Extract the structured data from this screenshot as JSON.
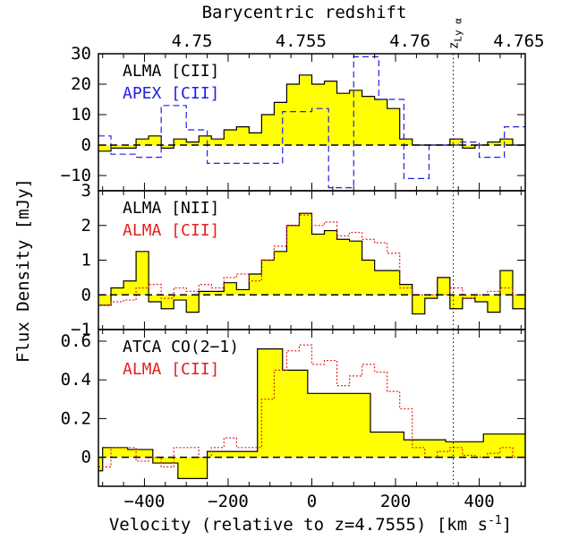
{
  "colors": {
    "fill": "#ffff00",
    "outline": "#000000",
    "apex": "#2020e6",
    "cii_overlay": "#e62020",
    "zero_line": "#000000"
  },
  "chart_data": {
    "type": "step",
    "xlabel": "Velocity (relative to z=4.7555) [km s",
    "xlabel_superscript": "-1",
    "xlabel_suffix": "]",
    "ylabel": "Flux Density [mJy]",
    "top_axis_label": "Barycentric redshift",
    "xlim": [
      -510,
      510
    ],
    "x_ticks": [
      -400,
      -200,
      0,
      200,
      400
    ],
    "x_tick_labels": [
      "−400",
      "−200",
      "0",
      "200",
      "400"
    ],
    "top_ticks": [
      4.75,
      4.755,
      4.76,
      4.765
    ],
    "top_tick_labels": [
      "4.75",
      "4.755",
      "4.76",
      "4.765"
    ],
    "z_lya_label": "z",
    "z_lya_subscript": "Ly α",
    "z_lya_velocity": 338,
    "panels": [
      {
        "ylim": [
          -15,
          30
        ],
        "yticks": [
          -10,
          0,
          10,
          20,
          30
        ],
        "ytick_labels": [
          "−10",
          "0",
          "10",
          "20",
          "30"
        ],
        "legend": [
          {
            "text": "ALMA [CII]",
            "color": "#000000"
          },
          {
            "text": "APEX [CII]",
            "color": "#2020e6"
          }
        ],
        "series": [
          {
            "name": "ALMA [CII]",
            "style": "filled",
            "edges": [
              -510,
              -480,
              -450,
              -420,
              -390,
              -360,
              -330,
              -300,
              -270,
              -240,
              -210,
              -180,
              -150,
              -120,
              -90,
              -60,
              -30,
              0,
              30,
              60,
              90,
              120,
              150,
              180,
              210,
              240,
              270,
              300,
              330,
              360,
              390,
              420,
              450,
              480,
              510
            ],
            "values": [
              -2,
              -1,
              -1,
              2,
              3,
              -1,
              2,
              1,
              3,
              2,
              5,
              6,
              4,
              10,
              14,
              20,
              23,
              20,
              21,
              17,
              18,
              16,
              15,
              12,
              2,
              0,
              0,
              0,
              2,
              -1,
              0,
              1,
              2,
              0
            ]
          },
          {
            "name": "APEX [CII]",
            "style": "dashed",
            "edges": [
              -510,
              -480,
              -420,
              -360,
              -300,
              -250,
              -200,
              -130,
              -70,
              0,
              40,
              100,
              160,
              220,
              280,
              350,
              400,
              460,
              510
            ],
            "values": [
              3,
              -3,
              -4,
              13,
              5,
              -6,
              -6,
              -6,
              11,
              12,
              -14,
              29,
              15,
              -11,
              0,
              1,
              -4,
              6
            ]
          }
        ]
      },
      {
        "ylim": [
          -1,
          3
        ],
        "yticks": [
          -1,
          0,
          1,
          2,
          3
        ],
        "ytick_labels": [
          "−1",
          "0",
          "1",
          "2",
          "3"
        ],
        "legend": [
          {
            "text": "ALMA [NII]",
            "color": "#000000"
          },
          {
            "text": "ALMA [CII]",
            "color": "#e62020"
          }
        ],
        "series": [
          {
            "name": "ALMA [NII]",
            "style": "filled",
            "edges": [
              -510,
              -480,
              -450,
              -420,
              -390,
              -360,
              -330,
              -300,
              -270,
              -240,
              -210,
              -180,
              -150,
              -120,
              -90,
              -60,
              -30,
              0,
              30,
              60,
              90,
              120,
              150,
              180,
              210,
              240,
              270,
              300,
              330,
              360,
              390,
              420,
              450,
              480,
              510
            ],
            "values": [
              -0.3,
              0.2,
              0.4,
              1.25,
              -0.2,
              -0.4,
              -0.15,
              -0.5,
              0.1,
              0.1,
              0.35,
              0.15,
              0.6,
              1.0,
              1.25,
              2.0,
              2.35,
              1.75,
              1.85,
              1.6,
              1.55,
              1.0,
              0.7,
              0.7,
              0.3,
              -0.55,
              -0.1,
              0.5,
              -0.4,
              -0.1,
              -0.2,
              -0.5,
              0.7,
              -0.4
            ]
          },
          {
            "name": "ALMA [CII]",
            "style": "dotted",
            "edges": [
              -510,
              -480,
              -450,
              -420,
              -390,
              -360,
              -330,
              -300,
              -270,
              -240,
              -210,
              -180,
              -150,
              -120,
              -90,
              -60,
              -30,
              0,
              30,
              60,
              90,
              120,
              150,
              180,
              210,
              240,
              270,
              300,
              330,
              360,
              390,
              420,
              450,
              480,
              510
            ],
            "values": [
              -0.3,
              -0.2,
              -0.15,
              0.2,
              0.3,
              -0.1,
              0.2,
              0.1,
              0.3,
              0.2,
              0.5,
              0.6,
              0.4,
              1.0,
              1.4,
              2.0,
              2.3,
              2.0,
              2.1,
              1.7,
              1.8,
              1.6,
              1.5,
              1.2,
              0.2,
              0.0,
              0.0,
              0.0,
              0.2,
              -0.1,
              0.0,
              0.1,
              0.2,
              0.0
            ]
          }
        ]
      },
      {
        "ylim": [
          -0.15,
          0.66
        ],
        "yticks": [
          0,
          0.2,
          0.4,
          0.6
        ],
        "ytick_labels": [
          "0",
          "0.2",
          "0.4",
          "0.6"
        ],
        "legend": [
          {
            "text": "ATCA CO(2−1)",
            "color": "#000000"
          },
          {
            "text": "ALMA [CII]",
            "color": "#e62020"
          }
        ],
        "series": [
          {
            "name": "ATCA CO(2−1)",
            "style": "filled",
            "edges": [
              -510,
              -500,
              -440,
              -380,
              -320,
              -250,
              -130,
              -70,
              -10,
              140,
              220,
              320,
              410,
              510
            ],
            "values": [
              -0.07,
              0.05,
              0.04,
              -0.03,
              -0.11,
              0.03,
              0.56,
              0.45,
              0.33,
              0.13,
              0.09,
              0.08,
              0.12
            ]
          },
          {
            "name": "ALMA [CII]",
            "style": "dotted",
            "edges": [
              -510,
              -480,
              -450,
              -420,
              -390,
              -360,
              -330,
              -300,
              -270,
              -240,
              -210,
              -180,
              -150,
              -120,
              -90,
              -60,
              -30,
              0,
              30,
              60,
              90,
              120,
              150,
              180,
              210,
              240,
              270,
              300,
              330,
              360,
              390,
              420,
              450,
              480,
              510
            ],
            "values": [
              -0.05,
              0.05,
              0.05,
              -0.02,
              0.0,
              -0.05,
              0.05,
              0.05,
              0.0,
              0.05,
              0.1,
              0.05,
              0.05,
              0.3,
              0.45,
              0.55,
              0.58,
              0.48,
              0.5,
              0.37,
              0.42,
              0.48,
              0.44,
              0.34,
              0.25,
              0.05,
              0.0,
              0.03,
              0.05,
              0.01,
              0.0,
              0.02,
              0.05,
              0.0
            ]
          }
        ]
      }
    ]
  }
}
